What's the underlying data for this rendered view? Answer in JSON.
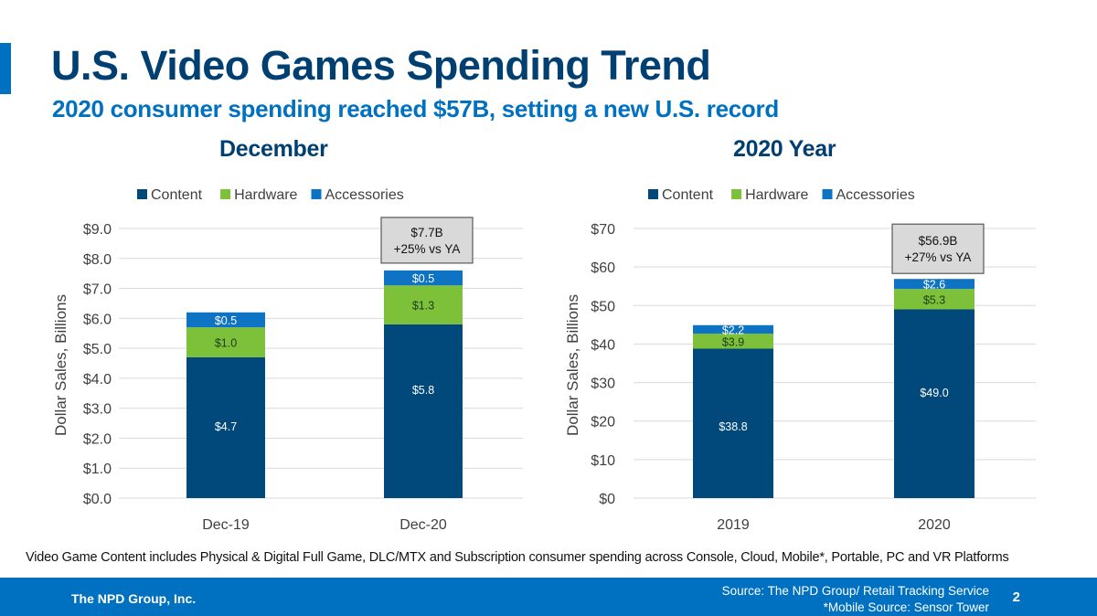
{
  "header": {
    "title": "U.S. Video Games Spending Trend",
    "subtitle": "2020 consumer spending reached $57B, setting a new U.S. record"
  },
  "colors": {
    "content": "#00497a",
    "hardware": "#7dc03a",
    "accessories": "#0d73c2",
    "title": "#003f72",
    "accent": "#0070c0",
    "callout_bg": "#d9d9d9"
  },
  "chart_data": [
    {
      "type": "bar",
      "stacked": true,
      "title": "December",
      "xlabel": "",
      "ylabel": "Dollar Sales, Billions",
      "ylim": [
        0,
        9
      ],
      "yticks": [
        0,
        1,
        2,
        3,
        4,
        5,
        6,
        7,
        8,
        9
      ],
      "ytick_labels": [
        "$0.0",
        "$1.0",
        "$2.0",
        "$3.0",
        "$4.0",
        "$5.0",
        "$6.0",
        "$7.0",
        "$8.0",
        "$9.0"
      ],
      "grid": true,
      "legend": "top-center",
      "categories": [
        "Dec-19",
        "Dec-20"
      ],
      "series": [
        {
          "name": "Content",
          "values": [
            4.7,
            5.8
          ],
          "labels": [
            "$4.7",
            "$5.8"
          ]
        },
        {
          "name": "Hardware",
          "values": [
            1.0,
            1.3
          ],
          "labels": [
            "$1.0",
            "$1.3"
          ]
        },
        {
          "name": "Accessories",
          "values": [
            0.5,
            0.5
          ],
          "labels": [
            "$0.5",
            "$0.5"
          ]
        }
      ],
      "annotation": {
        "category": "Dec-20",
        "line1": "$7.7B",
        "line2": "+25% vs YA"
      }
    },
    {
      "type": "bar",
      "stacked": true,
      "title": "2020 Year",
      "xlabel": "",
      "ylabel": "Dollar Sales, Billions",
      "ylim": [
        0,
        70
      ],
      "yticks": [
        0,
        10,
        20,
        30,
        40,
        50,
        60,
        70
      ],
      "ytick_labels": [
        "$0",
        "$10",
        "$20",
        "$30",
        "$40",
        "$50",
        "$60",
        "$70"
      ],
      "grid": true,
      "legend": "top-center",
      "categories": [
        "2019",
        "2020"
      ],
      "series": [
        {
          "name": "Content",
          "values": [
            38.8,
            49.0
          ],
          "labels": [
            "$38.8",
            "$49.0"
          ]
        },
        {
          "name": "Hardware",
          "values": [
            3.9,
            5.3
          ],
          "labels": [
            "$3.9",
            "$5.3"
          ]
        },
        {
          "name": "Accessories",
          "values": [
            2.2,
            2.6
          ],
          "labels": [
            "$2.2",
            "$2.6"
          ]
        }
      ],
      "annotation": {
        "category": "2020",
        "line1": "$56.9B",
        "line2": "+27% vs YA"
      }
    }
  ],
  "footnote": "Video Game Content includes Physical & Digital Full Game, DLC/MTX and Subscription consumer spending across Console, Cloud, Mobile*, Portable, PC and VR Platforms",
  "footer": {
    "org": "The NPD Group, Inc.",
    "source_line1": "Source: The NPD Group/ Retail Tracking Service",
    "source_line2": "*Mobile Source: Sensor Tower",
    "page": "2"
  }
}
